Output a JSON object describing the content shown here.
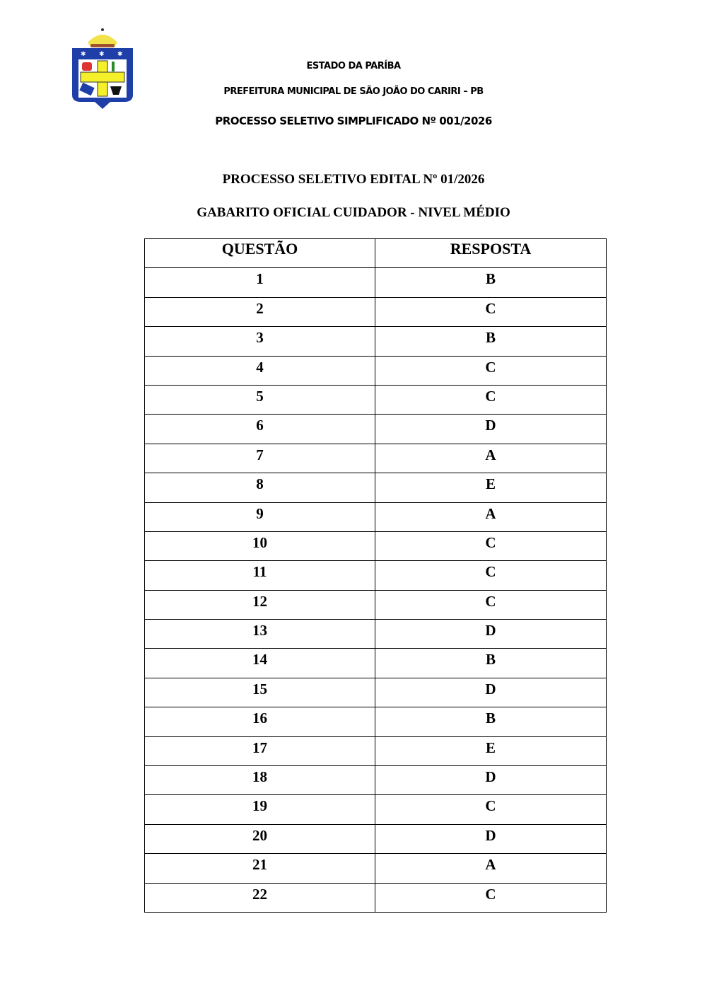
{
  "logo": {
    "description_text": ""
  },
  "header": {
    "state": "ESTADO DA PARÍBA",
    "municipality": "PREFEITURA MUNICIPAL DE SÃO JOÃO DO CARIRI – PB",
    "process": "PROCESSO SELETIVO SIMPLIFICADO Nº 001/2026"
  },
  "document": {
    "title": "PROCESSO SELETIVO EDITAL Nº 01/2026",
    "subtitle": "GABARITO OFICIAL CUIDADOR - NIVEL MÉDIO"
  },
  "table": {
    "headers": [
      "QUESTÃO",
      "RESPOSTA"
    ],
    "rows": [
      [
        "1",
        "B"
      ],
      [
        "2",
        "C"
      ],
      [
        "3",
        "B"
      ],
      [
        "4",
        "C"
      ],
      [
        "5",
        "C"
      ],
      [
        "6",
        "D"
      ],
      [
        "7",
        "A"
      ],
      [
        "8",
        "E"
      ],
      [
        "9",
        "A"
      ],
      [
        "10",
        "C"
      ],
      [
        "11",
        "C"
      ],
      [
        "12",
        "C"
      ],
      [
        "13",
        "D"
      ],
      [
        "14",
        "B"
      ],
      [
        "15",
        "D"
      ],
      [
        "16",
        "B"
      ],
      [
        "17",
        "E"
      ],
      [
        "18",
        "D"
      ],
      [
        "19",
        "C"
      ],
      [
        "20",
        "D"
      ],
      [
        "21",
        "A"
      ],
      [
        "22",
        "C"
      ]
    ]
  }
}
